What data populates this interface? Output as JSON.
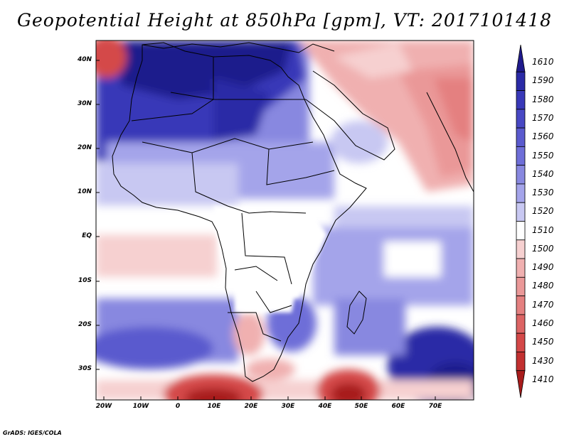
{
  "title": "Geopotential Height at 850hPa [gpm], VT: 2017101418",
  "credit": "GrADS: IGES/COLA",
  "lat_labels": [
    "40N",
    "30N",
    "20N",
    "10N",
    "EQ",
    "10S",
    "20S",
    "30S"
  ],
  "lon_labels": [
    "20W",
    "10W",
    "0",
    "10E",
    "20E",
    "30E",
    "40E",
    "50E",
    "60E",
    "70E"
  ],
  "colorbar": {
    "levels": [
      "1610",
      "1590",
      "1580",
      "1570",
      "1560",
      "1550",
      "1540",
      "1530",
      "1520",
      "1510",
      "1500",
      "1490",
      "1480",
      "1470",
      "1460",
      "1450",
      "1430",
      "1410"
    ],
    "colors": [
      "#1f1a8c",
      "#2a2aa6",
      "#3838b8",
      "#4848c4",
      "#5a5ace",
      "#6e6ed8",
      "#8888e0",
      "#a4a4ea",
      "#c8c8f2",
      "#ffffff",
      "#f6d0d0",
      "#f0b0b0",
      "#ea9898",
      "#e48080",
      "#dc6464",
      "#d44848",
      "#c23030",
      "#a81c1c"
    ]
  },
  "colors": {
    "ocean_blue": "#5a5ace",
    "ocean_red": "#d44848",
    "neutral": "#ffffff"
  }
}
